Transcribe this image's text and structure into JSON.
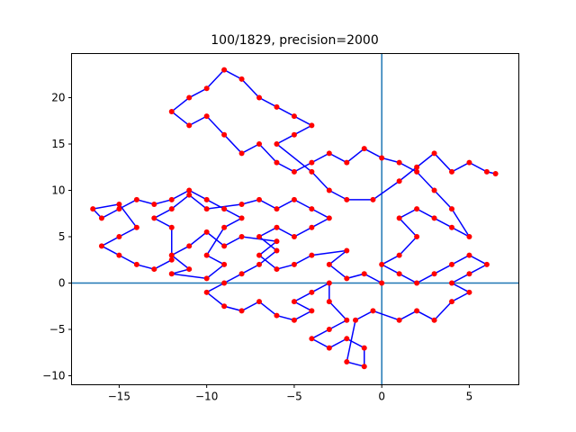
{
  "chart_data": {
    "type": "line",
    "title": "100/1829, precision=2000",
    "line_color": "#0000ff",
    "marker_color": "#ff0000",
    "ref_color": "#1f77b4",
    "hlines": [
      0
    ],
    "vlines": [
      0
    ],
    "xlim": [
      -17.72,
      7.83
    ],
    "ylim": [
      -10.97,
      24.76
    ],
    "xticks": [
      {
        "value": -15,
        "label": "−15"
      },
      {
        "value": -10,
        "label": "−10"
      },
      {
        "value": -5,
        "label": "−5"
      },
      0,
      5
    ],
    "yticks": [
      {
        "value": -10,
        "label": "−10"
      },
      {
        "value": -5,
        "label": "−5"
      },
      0,
      5,
      10,
      15,
      20
    ],
    "x": [
      0,
      -1,
      -2,
      -3,
      -2,
      -4,
      -5,
      -6,
      -7,
      -6,
      -8,
      -9,
      -10,
      -11,
      -12,
      -11,
      -12,
      -10,
      -9,
      -10,
      -9,
      -8,
      -9,
      -10,
      -11,
      -12,
      -13,
      -14,
      -15,
      -16,
      -16.5,
      -15,
      -14,
      -15,
      -16,
      -15,
      -14,
      -13,
      -12,
      -12,
      -13,
      -12,
      -11,
      -10,
      -8,
      -7,
      -6,
      -5,
      -4,
      -3,
      -4,
      -5,
      -6,
      -7,
      -6,
      -7,
      -8,
      -9,
      -10,
      -9,
      -8,
      -7,
      -6,
      -5,
      -4,
      -5,
      -4,
      -3,
      -3,
      -2,
      -3,
      -4,
      -3,
      -2,
      -1,
      -1,
      -2,
      -1.5,
      -0.5,
      1,
      2,
      3,
      4,
      5,
      4,
      5,
      6,
      5,
      4,
      3,
      2,
      1,
      0,
      1,
      2,
      1,
      2,
      3,
      4,
      5,
      4,
      3,
      2,
      1,
      0,
      -1,
      -2,
      -3,
      -4,
      -5,
      -6,
      -7,
      -8,
      -9,
      -10,
      -11,
      -12,
      -11,
      -10,
      -9,
      -8,
      -7,
      -6,
      -5,
      -4,
      -5,
      -6,
      -4,
      -3,
      -2,
      -0.5,
      1,
      2,
      3,
      4,
      5,
      6,
      6.5
    ],
    "y": [
      0,
      1,
      0.5,
      2,
      3.5,
      3,
      2,
      1.5,
      3,
      4.5,
      5,
      4,
      5.5,
      4,
      3,
      1.5,
      1,
      0.5,
      2,
      3,
      6,
      7,
      8,
      9,
      10,
      9,
      8.5,
      9,
      8,
      7,
      8,
      8.5,
      6,
      5,
      4,
      3,
      2,
      1.5,
      2.5,
      6,
      7,
      8,
      9.5,
      8,
      8.5,
      9,
      8,
      9,
      8,
      7,
      6,
      5,
      6,
      5,
      3.5,
      2,
      1,
      0,
      -1,
      -2.5,
      -3,
      -2,
      -3.5,
      -4,
      -3,
      -2,
      -1,
      0,
      -2,
      -4,
      -5,
      -6,
      -7,
      -6,
      -7,
      -9,
      -8.5,
      -4,
      -3,
      -4,
      -3,
      -4,
      -2,
      -1,
      0,
      1,
      2,
      3,
      2,
      1,
      0,
      1,
      2,
      3,
      5,
      7,
      8,
      7,
      6,
      5,
      8,
      10,
      12,
      13,
      13.5,
      14.5,
      13,
      14,
      13,
      12,
      13,
      15,
      14,
      16,
      18,
      17,
      18.5,
      20,
      21,
      23,
      22,
      20,
      19,
      18,
      17,
      16,
      15,
      12,
      10,
      9,
      9,
      11,
      12.5,
      14,
      12,
      13,
      12,
      11.8
    ]
  }
}
